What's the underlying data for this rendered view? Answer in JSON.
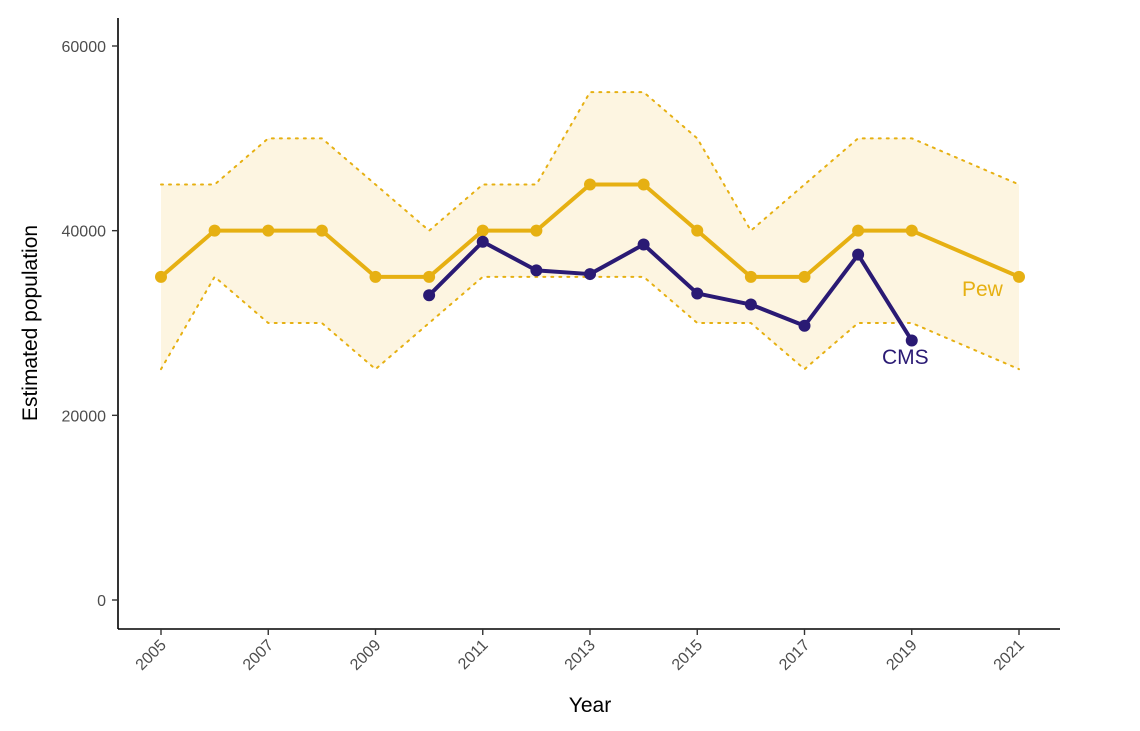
{
  "chart_data": {
    "type": "line",
    "title": "",
    "xlabel": "Year",
    "ylabel": "Estimated population",
    "xlim": [
      2005,
      2021
    ],
    "ylim": [
      0,
      60000
    ],
    "x_ticks": [
      "2005",
      "2007",
      "2009",
      "2011",
      "2013",
      "2015",
      "2017",
      "2019",
      "2021"
    ],
    "y_ticks": [
      "0",
      "20000",
      "40000",
      "60000"
    ],
    "grid": false,
    "legend": "direct labels at line ends",
    "series": [
      {
        "name": "Pew",
        "color": "#E6B012",
        "x": [
          2005,
          2006,
          2007,
          2008,
          2009,
          2010,
          2011,
          2012,
          2013,
          2014,
          2015,
          2016,
          2017,
          2018,
          2019,
          2021
        ],
        "values": [
          35000,
          40000,
          40000,
          40000,
          35000,
          35000,
          40000,
          40000,
          45000,
          45000,
          40000,
          35000,
          35000,
          40000,
          40000,
          35000
        ],
        "upper": [
          45000,
          45000,
          50000,
          50000,
          45000,
          40000,
          45000,
          45000,
          55000,
          55000,
          50000,
          40000,
          45000,
          50000,
          50000,
          45000
        ],
        "lower": [
          25000,
          35000,
          30000,
          30000,
          25000,
          30000,
          35000,
          35000,
          35000,
          35000,
          30000,
          30000,
          25000,
          30000,
          30000,
          25000
        ],
        "band_color": "#FDF5E1"
      },
      {
        "name": "CMS",
        "color": "#2A1A74",
        "x": [
          2010,
          2011,
          2012,
          2013,
          2014,
          2015,
          2016,
          2017,
          2018,
          2019
        ],
        "values": [
          33000,
          38800,
          35700,
          35300,
          38500,
          33200,
          32000,
          29700,
          37400,
          28100
        ]
      }
    ]
  }
}
